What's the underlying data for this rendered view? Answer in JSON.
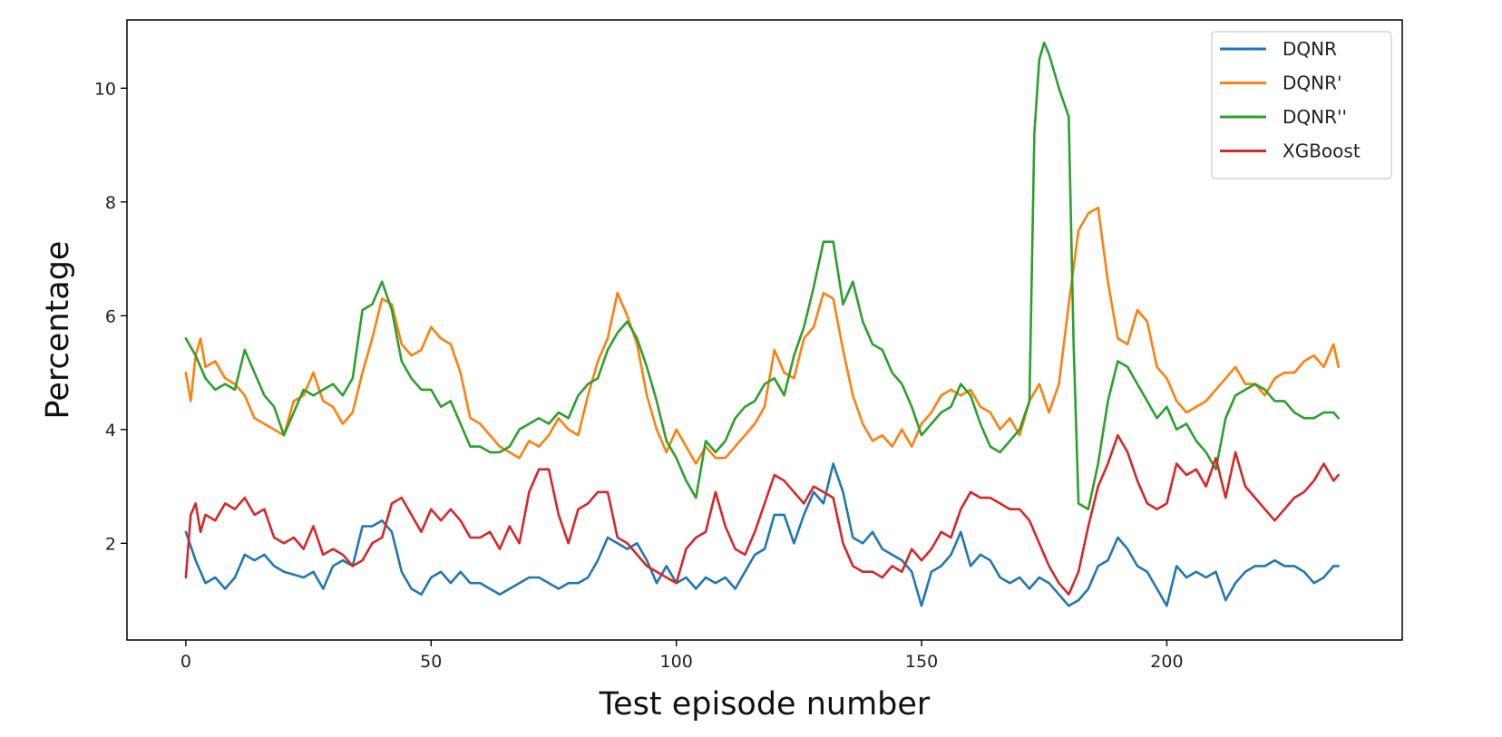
{
  "chart_data": {
    "type": "line",
    "title": "",
    "xlabel": "Test episode number",
    "ylabel": "Percentage",
    "xlim": [
      -12,
      248
    ],
    "ylim": [
      0.3,
      11.2
    ],
    "xticks": [
      0,
      50,
      100,
      150,
      200
    ],
    "yticks": [
      2,
      4,
      6,
      8,
      10
    ],
    "grid": false,
    "legend_position": "top-right",
    "series": [
      {
        "name": "DQNR",
        "color": "#1f77b4",
        "x": [
          0,
          2,
          4,
          6,
          8,
          10,
          12,
          14,
          16,
          18,
          20,
          24,
          26,
          28,
          30,
          32,
          34,
          36,
          38,
          40,
          42,
          44,
          46,
          48,
          50,
          52,
          54,
          56,
          58,
          60,
          62,
          64,
          66,
          68,
          70,
          72,
          74,
          76,
          78,
          80,
          82,
          84,
          86,
          88,
          90,
          92,
          94,
          96,
          98,
          100,
          102,
          104,
          106,
          108,
          110,
          112,
          114,
          116,
          118,
          120,
          122,
          124,
          126,
          128,
          130,
          132,
          134,
          136,
          138,
          140,
          142,
          144,
          146,
          148,
          150,
          152,
          154,
          156,
          158,
          160,
          162,
          164,
          166,
          168,
          170,
          172,
          174,
          176,
          178,
          180,
          182,
          184,
          186,
          188,
          190,
          192,
          194,
          196,
          198,
          200,
          202,
          204,
          206,
          208,
          210,
          212,
          214,
          216,
          218,
          220,
          222,
          224,
          226,
          228,
          230,
          232,
          234,
          235
        ],
        "y": [
          2.2,
          1.7,
          1.3,
          1.4,
          1.2,
          1.4,
          1.8,
          1.7,
          1.8,
          1.6,
          1.5,
          1.4,
          1.5,
          1.2,
          1.6,
          1.7,
          1.6,
          2.3,
          2.3,
          2.4,
          2.2,
          1.5,
          1.2,
          1.1,
          1.4,
          1.5,
          1.3,
          1.5,
          1.3,
          1.3,
          1.2,
          1.1,
          1.2,
          1.3,
          1.4,
          1.4,
          1.3,
          1.2,
          1.3,
          1.3,
          1.4,
          1.7,
          2.1,
          2.0,
          1.9,
          2.0,
          1.7,
          1.3,
          1.6,
          1.3,
          1.4,
          1.2,
          1.4,
          1.3,
          1.4,
          1.2,
          1.5,
          1.8,
          1.9,
          2.5,
          2.5,
          2.0,
          2.5,
          2.9,
          2.7,
          3.4,
          2.9,
          2.1,
          2.0,
          2.2,
          1.9,
          1.8,
          1.7,
          1.5,
          0.9,
          1.5,
          1.6,
          1.8,
          2.2,
          1.6,
          1.8,
          1.7,
          1.4,
          1.3,
          1.4,
          1.2,
          1.4,
          1.3,
          1.1,
          0.9,
          1.0,
          1.2,
          1.6,
          1.7,
          2.1,
          1.9,
          1.6,
          1.5,
          1.2,
          0.9,
          1.6,
          1.4,
          1.5,
          1.4,
          1.5,
          1.0,
          1.3,
          1.5,
          1.6,
          1.6,
          1.7,
          1.6,
          1.6,
          1.5,
          1.3,
          1.4,
          1.6,
          1.6
        ]
      },
      {
        "name": "DQNR'",
        "color": "#ff7f0e",
        "x": [
          0,
          1,
          2,
          3,
          4,
          6,
          8,
          10,
          12,
          14,
          16,
          18,
          20,
          22,
          24,
          26,
          28,
          30,
          32,
          34,
          36,
          38,
          40,
          42,
          44,
          46,
          48,
          50,
          52,
          54,
          56,
          58,
          60,
          62,
          64,
          66,
          68,
          70,
          72,
          74,
          76,
          78,
          80,
          82,
          84,
          86,
          88,
          90,
          92,
          94,
          96,
          98,
          100,
          102,
          104,
          106,
          108,
          110,
          112,
          114,
          116,
          118,
          120,
          122,
          124,
          126,
          128,
          130,
          132,
          134,
          136,
          138,
          140,
          142,
          144,
          146,
          148,
          150,
          152,
          154,
          156,
          158,
          160,
          162,
          164,
          166,
          168,
          170,
          172,
          174,
          176,
          178,
          180,
          182,
          184,
          186,
          188,
          190,
          192,
          194,
          196,
          198,
          200,
          202,
          204,
          206,
          208,
          210,
          212,
          214,
          216,
          218,
          220,
          222,
          224,
          226,
          228,
          230,
          232,
          234,
          235
        ],
        "y": [
          5.0,
          4.5,
          5.3,
          5.6,
          5.1,
          5.2,
          4.9,
          4.8,
          4.6,
          4.2,
          4.1,
          4.0,
          3.9,
          4.5,
          4.6,
          5.0,
          4.5,
          4.4,
          4.1,
          4.3,
          5.0,
          5.6,
          6.3,
          6.2,
          5.5,
          5.3,
          5.4,
          5.8,
          5.6,
          5.5,
          5.0,
          4.2,
          4.1,
          3.9,
          3.7,
          3.6,
          3.5,
          3.8,
          3.7,
          3.9,
          4.2,
          4.0,
          3.9,
          4.6,
          5.2,
          5.6,
          6.4,
          6.0,
          5.5,
          4.6,
          4.0,
          3.6,
          4.0,
          3.7,
          3.4,
          3.7,
          3.5,
          3.5,
          3.7,
          3.9,
          4.1,
          4.4,
          5.4,
          5.0,
          4.9,
          5.6,
          5.8,
          6.4,
          6.3,
          5.4,
          4.6,
          4.1,
          3.8,
          3.9,
          3.7,
          4.0,
          3.7,
          4.1,
          4.3,
          4.6,
          4.7,
          4.6,
          4.7,
          4.4,
          4.3,
          4.0,
          4.2,
          3.9,
          4.5,
          4.8,
          4.3,
          4.8,
          6.2,
          7.5,
          7.8,
          7.9,
          6.6,
          5.6,
          5.5,
          6.1,
          5.9,
          5.1,
          4.9,
          4.5,
          4.3,
          4.4,
          4.5,
          4.7,
          4.9,
          5.1,
          4.8,
          4.8,
          4.6,
          4.9,
          5.0,
          5.0,
          5.2,
          5.3,
          5.1,
          5.5,
          5.1
        ]
      },
      {
        "name": "DQNR''",
        "color": "#2ca02c",
        "x": [
          0,
          2,
          4,
          6,
          8,
          10,
          12,
          14,
          16,
          18,
          20,
          22,
          24,
          26,
          28,
          30,
          32,
          34,
          36,
          38,
          40,
          42,
          44,
          46,
          48,
          50,
          52,
          54,
          56,
          58,
          60,
          62,
          64,
          66,
          68,
          70,
          72,
          74,
          76,
          78,
          80,
          82,
          84,
          86,
          88,
          90,
          92,
          94,
          96,
          98,
          100,
          102,
          104,
          106,
          108,
          110,
          112,
          114,
          116,
          118,
          120,
          122,
          124,
          126,
          128,
          130,
          132,
          134,
          136,
          138,
          140,
          142,
          144,
          146,
          148,
          150,
          152,
          154,
          156,
          158,
          160,
          162,
          164,
          166,
          168,
          170,
          172,
          173,
          174,
          175,
          176,
          178,
          180,
          181,
          182,
          184,
          186,
          188,
          190,
          192,
          194,
          196,
          198,
          200,
          202,
          204,
          206,
          208,
          210,
          212,
          214,
          216,
          218,
          220,
          222,
          224,
          226,
          228,
          230,
          232,
          234,
          235
        ],
        "y": [
          5.6,
          5.3,
          4.9,
          4.7,
          4.8,
          4.7,
          5.4,
          5.0,
          4.6,
          4.4,
          3.9,
          4.3,
          4.7,
          4.6,
          4.7,
          4.8,
          4.6,
          4.9,
          6.1,
          6.2,
          6.6,
          6.1,
          5.2,
          4.9,
          4.7,
          4.7,
          4.4,
          4.5,
          4.1,
          3.7,
          3.7,
          3.6,
          3.6,
          3.7,
          4.0,
          4.1,
          4.2,
          4.1,
          4.3,
          4.2,
          4.6,
          4.8,
          4.9,
          5.4,
          5.7,
          5.9,
          5.6,
          5.1,
          4.5,
          3.8,
          3.5,
          3.1,
          2.8,
          3.8,
          3.6,
          3.8,
          4.2,
          4.4,
          4.5,
          4.8,
          4.9,
          4.6,
          5.3,
          5.8,
          6.5,
          7.3,
          7.3,
          6.2,
          6.6,
          5.9,
          5.5,
          5.4,
          5.0,
          4.8,
          4.4,
          3.9,
          4.1,
          4.3,
          4.4,
          4.8,
          4.6,
          4.1,
          3.7,
          3.6,
          3.8,
          4.0,
          4.5,
          9.2,
          10.5,
          10.8,
          10.6,
          10.0,
          9.5,
          5.5,
          2.7,
          2.6,
          3.4,
          4.5,
          5.2,
          5.1,
          4.8,
          4.5,
          4.2,
          4.4,
          4.0,
          4.1,
          3.8,
          3.6,
          3.3,
          4.2,
          4.6,
          4.7,
          4.8,
          4.7,
          4.5,
          4.5,
          4.3,
          4.2,
          4.2,
          4.3,
          4.3,
          4.2
        ]
      },
      {
        "name": "XGBoost",
        "color": "#d62728",
        "x": [
          0,
          1,
          2,
          3,
          4,
          6,
          8,
          10,
          12,
          14,
          16,
          18,
          20,
          22,
          24,
          26,
          28,
          30,
          32,
          34,
          36,
          38,
          40,
          42,
          44,
          46,
          48,
          50,
          52,
          54,
          56,
          58,
          60,
          62,
          64,
          66,
          68,
          70,
          72,
          74,
          76,
          78,
          80,
          82,
          84,
          86,
          88,
          90,
          92,
          94,
          96,
          98,
          100,
          102,
          104,
          106,
          108,
          110,
          112,
          114,
          116,
          118,
          120,
          122,
          124,
          126,
          128,
          130,
          132,
          134,
          136,
          138,
          140,
          142,
          144,
          146,
          148,
          150,
          152,
          154,
          156,
          158,
          160,
          162,
          164,
          166,
          168,
          170,
          172,
          174,
          176,
          178,
          180,
          182,
          184,
          186,
          188,
          190,
          192,
          194,
          196,
          198,
          200,
          202,
          204,
          206,
          208,
          210,
          212,
          214,
          216,
          218,
          220,
          222,
          224,
          226,
          228,
          230,
          232,
          234,
          235
        ],
        "y": [
          1.4,
          2.5,
          2.7,
          2.2,
          2.5,
          2.4,
          2.7,
          2.6,
          2.8,
          2.5,
          2.6,
          2.1,
          2.0,
          2.1,
          1.9,
          2.3,
          1.8,
          1.9,
          1.8,
          1.6,
          1.7,
          2.0,
          2.1,
          2.7,
          2.8,
          2.5,
          2.2,
          2.6,
          2.4,
          2.6,
          2.4,
          2.1,
          2.1,
          2.2,
          1.9,
          2.3,
          2.0,
          2.9,
          3.3,
          3.3,
          2.5,
          2.0,
          2.6,
          2.7,
          2.9,
          2.9,
          2.1,
          2.0,
          1.8,
          1.6,
          1.5,
          1.4,
          1.3,
          1.9,
          2.1,
          2.2,
          2.9,
          2.3,
          1.9,
          1.8,
          2.2,
          2.7,
          3.2,
          3.1,
          2.9,
          2.7,
          3.0,
          2.9,
          2.8,
          2.0,
          1.6,
          1.5,
          1.5,
          1.4,
          1.6,
          1.5,
          1.9,
          1.7,
          1.9,
          2.2,
          2.1,
          2.6,
          2.9,
          2.8,
          2.8,
          2.7,
          2.6,
          2.6,
          2.4,
          2.0,
          1.6,
          1.3,
          1.1,
          1.5,
          2.3,
          3.0,
          3.4,
          3.9,
          3.6,
          3.1,
          2.7,
          2.6,
          2.7,
          3.4,
          3.2,
          3.3,
          3.0,
          3.5,
          2.8,
          3.6,
          3.0,
          2.8,
          2.6,
          2.4,
          2.6,
          2.8,
          2.9,
          3.1,
          3.4,
          3.1,
          3.2
        ]
      }
    ]
  }
}
